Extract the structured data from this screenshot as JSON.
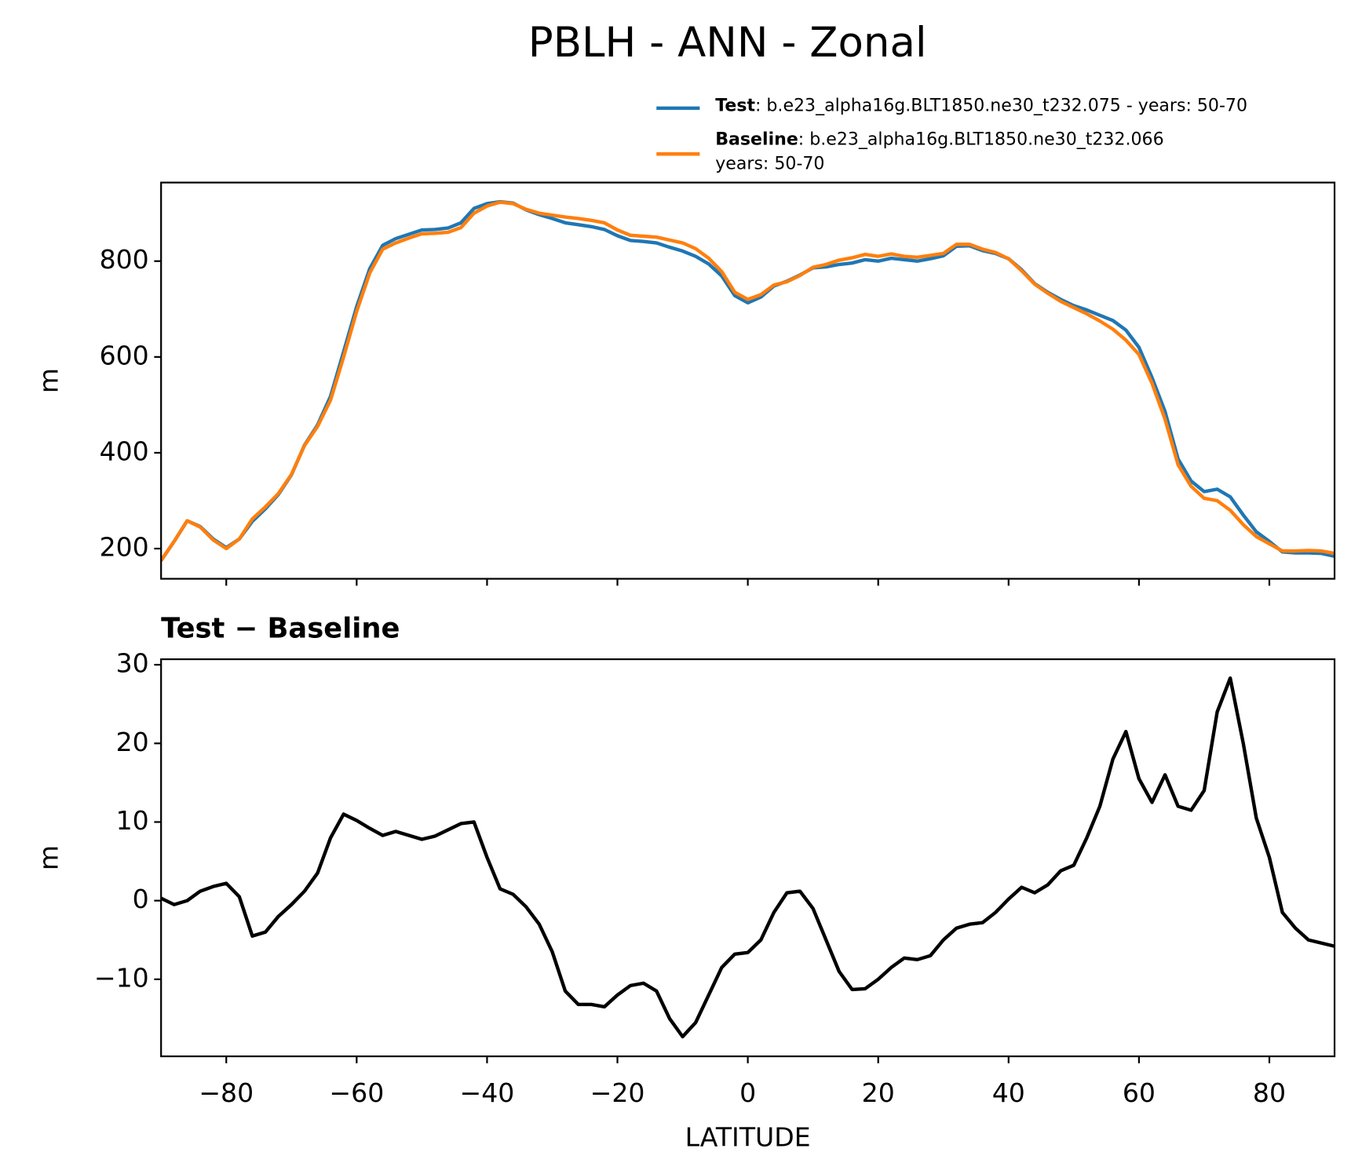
{
  "chart_data": [
    {
      "type": "line",
      "title": "PBLH - ANN - Zonal",
      "ylabel": "m",
      "x": [
        -90,
        -88,
        -86,
        -84,
        -82,
        -80,
        -78,
        -76,
        -74,
        -72,
        -70,
        -68,
        -66,
        -64,
        -62,
        -60,
        -58,
        -56,
        -54,
        -52,
        -50,
        -48,
        -46,
        -44,
        -42,
        -40,
        -38,
        -36,
        -34,
        -32,
        -30,
        -28,
        -26,
        -24,
        -22,
        -20,
        -18,
        -16,
        -14,
        -12,
        -10,
        -8,
        -6,
        -4,
        -2,
        0,
        2,
        4,
        6,
        8,
        10,
        12,
        14,
        16,
        18,
        20,
        22,
        24,
        26,
        28,
        30,
        32,
        34,
        36,
        38,
        40,
        42,
        44,
        46,
        48,
        50,
        52,
        54,
        56,
        58,
        60,
        62,
        64,
        66,
        68,
        70,
        72,
        74,
        76,
        78,
        80,
        82,
        84,
        86,
        88,
        90
      ],
      "series": [
        {
          "name": "Test",
          "label_lines": [
            ": b.e23_alpha16g.BLT1850.ne30_t232.075 - years: 50-70"
          ],
          "color": "#1f77b4",
          "values": [
            175,
            215,
            258,
            246,
            220,
            202,
            220,
            257,
            283,
            313,
            354,
            416,
            458,
            518,
            611,
            705,
            784,
            833,
            847,
            856,
            865,
            866,
            869,
            880,
            910,
            920,
            924,
            921,
            907,
            897,
            889,
            880,
            876,
            872,
            866,
            853,
            843,
            841,
            838,
            829,
            821,
            810,
            794,
            769,
            728,
            713,
            725,
            748,
            758,
            771,
            786,
            788,
            793,
            796,
            803,
            800,
            806,
            803,
            800,
            805,
            811,
            831,
            832,
            822,
            816,
            805,
            782,
            753,
            735,
            720,
            707,
            698,
            687,
            676,
            656,
            620,
            557,
            486,
            387,
            341,
            319,
            324,
            308,
            270,
            235,
            215,
            193,
            191,
            191,
            190,
            184
          ]
        },
        {
          "name": "Baseline",
          "label_lines": [
            ": b.e23_alpha16g.BLT1850.ne30_t232.066",
            "years: 50-70"
          ],
          "color": "#ff7f0e",
          "values": [
            175,
            215,
            258,
            245,
            218,
            200,
            220,
            262,
            287,
            315,
            355,
            415,
            455,
            510,
            600,
            695,
            775,
            825,
            838,
            848,
            857,
            858,
            860,
            870,
            900,
            915,
            923,
            920,
            908,
            900,
            896,
            892,
            889,
            885,
            880,
            865,
            854,
            852,
            850,
            844,
            838,
            826,
            806,
            778,
            735,
            720,
            730,
            750,
            757,
            770,
            787,
            793,
            802,
            807,
            814,
            810,
            815,
            810,
            808,
            812,
            816,
            835,
            835,
            825,
            818,
            805,
            780,
            752,
            733,
            716,
            703,
            690,
            675,
            658,
            635,
            605,
            545,
            470,
            375,
            330,
            305,
            300,
            280,
            250,
            225,
            210,
            195,
            195,
            196,
            195,
            190
          ]
        }
      ],
      "xlim": [
        -90,
        90
      ],
      "xticks": [
        {
          "value": -80,
          "label": "−80"
        },
        {
          "value": -60,
          "label": "−60"
        },
        {
          "value": -40,
          "label": "−40"
        },
        {
          "value": -20,
          "label": "−20"
        },
        0,
        20,
        40,
        60,
        80
      ],
      "ylim": [
        137,
        964
      ],
      "yticks": [
        200,
        400,
        600,
        800
      ]
    },
    {
      "type": "line",
      "title": "Test − Baseline",
      "ylabel": "m",
      "xlabel": "LATITUDE",
      "x": [
        -90,
        -88,
        -86,
        -84,
        -82,
        -80,
        -78,
        -76,
        -74,
        -72,
        -70,
        -68,
        -66,
        -64,
        -62,
        -60,
        -58,
        -56,
        -54,
        -52,
        -50,
        -48,
        -46,
        -44,
        -42,
        -40,
        -38,
        -36,
        -34,
        -32,
        -30,
        -28,
        -26,
        -24,
        -22,
        -20,
        -18,
        -16,
        -14,
        -12,
        -10,
        -8,
        -6,
        -4,
        -2,
        0,
        2,
        4,
        6,
        8,
        10,
        12,
        14,
        16,
        18,
        20,
        22,
        24,
        26,
        28,
        30,
        32,
        34,
        36,
        38,
        40,
        42,
        44,
        46,
        48,
        50,
        52,
        54,
        56,
        58,
        60,
        62,
        64,
        66,
        68,
        70,
        72,
        74,
        76,
        78,
        80,
        82,
        84,
        86,
        88,
        90
      ],
      "series": [
        {
          "color": "#000000",
          "values": [
            0.3,
            -0.5,
            0,
            1.2,
            1.8,
            2.2,
            0.5,
            -4.5,
            -4,
            -2,
            -0.5,
            1.2,
            3.5,
            8,
            11,
            10.2,
            9.2,
            8.3,
            8.8,
            8.3,
            7.8,
            8.2,
            9,
            9.8,
            10,
            5.5,
            1.5,
            0.8,
            -0.8,
            -3,
            -6.5,
            -11.5,
            -13.2,
            -13.2,
            -13.5,
            -12,
            -10.8,
            -10.5,
            -11.5,
            -15,
            -17.3,
            -15.5,
            -12,
            -8.5,
            -6.8,
            -6.6,
            -5,
            -1.5,
            1,
            1.2,
            -1,
            -5,
            -9,
            -11.3,
            -11.2,
            -10,
            -8.5,
            -7.3,
            -7.5,
            -7,
            -5,
            -3.5,
            -3,
            -2.8,
            -1.5,
            0.2,
            1.7,
            1,
            2,
            3.8,
            4.5,
            8,
            12,
            18,
            21.5,
            15.5,
            12.5,
            16,
            12,
            11.5,
            14,
            24,
            28.3,
            20,
            10.5,
            5.5,
            -1.5,
            -3.5,
            -5,
            -5.4,
            -5.8
          ]
        }
      ],
      "xlim": [
        -90,
        90
      ],
      "xticks": [
        {
          "value": -80,
          "label": "−80"
        },
        {
          "value": -60,
          "label": "−60"
        },
        {
          "value": -40,
          "label": "−40"
        },
        {
          "value": -20,
          "label": "−20"
        },
        0,
        20,
        40,
        60,
        80
      ],
      "ylim": [
        -19.8,
        30.7
      ],
      "yticks": [
        {
          "value": -10,
          "label": "−10"
        },
        0,
        10,
        20,
        30
      ]
    }
  ]
}
